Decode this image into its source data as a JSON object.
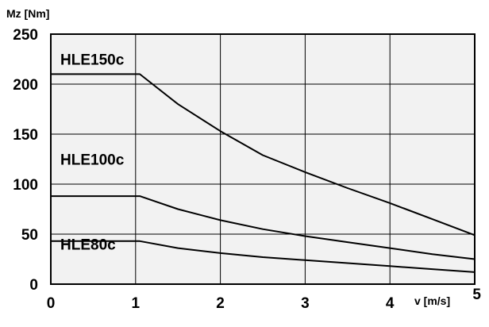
{
  "chart_data": {
    "type": "line",
    "title": "",
    "xlabel": "v [m/s]",
    "ylabel": "Mz [Nm]",
    "xlim": [
      0,
      5
    ],
    "ylim": [
      0,
      250
    ],
    "x_ticks": [
      "0",
      "1",
      "2",
      "3",
      "4",
      "5"
    ],
    "y_ticks": [
      "0",
      "50",
      "100",
      "150",
      "200",
      "250"
    ],
    "grid": true,
    "series": [
      {
        "name": "HLE150c",
        "x": [
          0,
          1.05,
          1.5,
          2.0,
          2.5,
          3.0,
          3.5,
          4.0,
          4.5,
          5.0
        ],
        "y": [
          210,
          210,
          180,
          153,
          129,
          112,
          96,
          81,
          65,
          49
        ]
      },
      {
        "name": "HLE100c",
        "x": [
          0,
          1.05,
          1.5,
          2.0,
          2.5,
          3.0,
          3.5,
          4.0,
          4.5,
          5.0
        ],
        "y": [
          88,
          88,
          75,
          64,
          55,
          48,
          42,
          36,
          30,
          25
        ]
      },
      {
        "name": "HLE80c",
        "x": [
          0,
          1.05,
          1.5,
          2.0,
          2.5,
          3.0,
          3.5,
          4.0,
          4.5,
          5.0
        ],
        "y": [
          43,
          43,
          36,
          31,
          27,
          24,
          21,
          18,
          15,
          12
        ]
      }
    ]
  }
}
